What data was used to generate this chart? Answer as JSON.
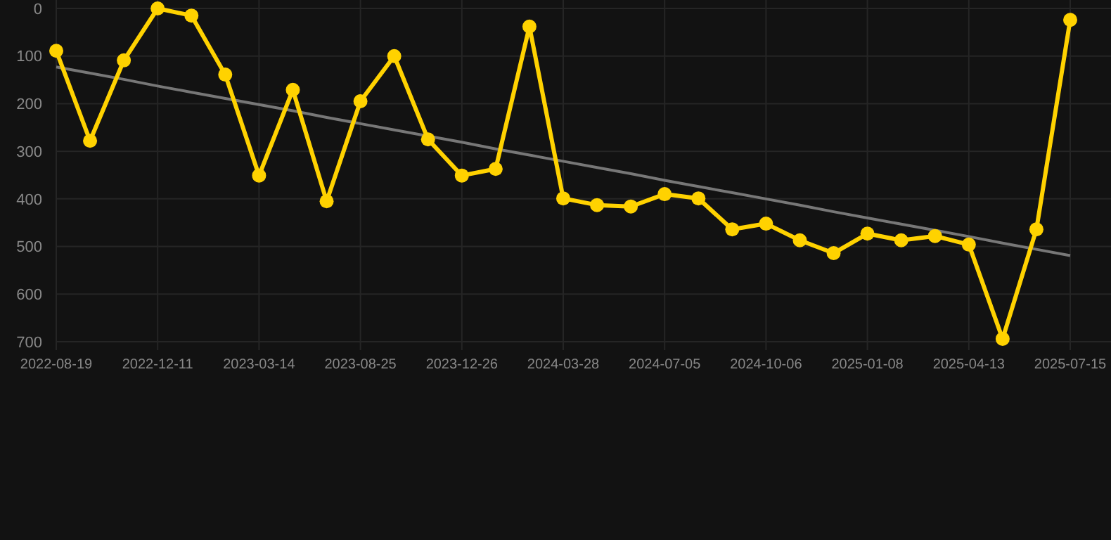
{
  "chart_data": {
    "type": "line",
    "categories": [
      "2022-08-19",
      null,
      null,
      "2022-12-11",
      null,
      null,
      "2023-03-14",
      null,
      null,
      "2023-08-25",
      null,
      null,
      "2023-12-26",
      null,
      null,
      "2024-03-28",
      null,
      null,
      "2024-07-05",
      null,
      null,
      "2024-10-06",
      null,
      null,
      "2025-01-08",
      null,
      null,
      "2025-04-13",
      null,
      null,
      "2025-07-15"
    ],
    "series": [
      {
        "color": "#ffd200",
        "marker": "circle",
        "values": [
          89,
          278,
          109,
          0,
          15,
          139,
          351,
          171,
          405,
          195,
          100,
          275,
          351,
          337,
          38,
          399,
          413,
          416,
          390,
          399,
          464,
          452,
          487,
          514,
          473,
          487,
          478,
          496,
          694,
          464,
          24
        ]
      },
      {
        "type": "line",
        "color": "#777777",
        "marker": "none",
        "values": [
          123,
          136,
          149,
          163,
          176,
          189,
          202,
          215,
          229,
          242,
          255,
          268,
          281,
          295,
          308,
          321,
          334,
          347,
          361,
          374,
          387,
          400,
          413,
          427,
          440,
          453,
          466,
          479,
          493,
          506,
          519
        ]
      }
    ],
    "ylim": [
      700,
      0
    ],
    "yticks": [
      0,
      100,
      200,
      300,
      400,
      500,
      600,
      700
    ],
    "grid": true
  }
}
